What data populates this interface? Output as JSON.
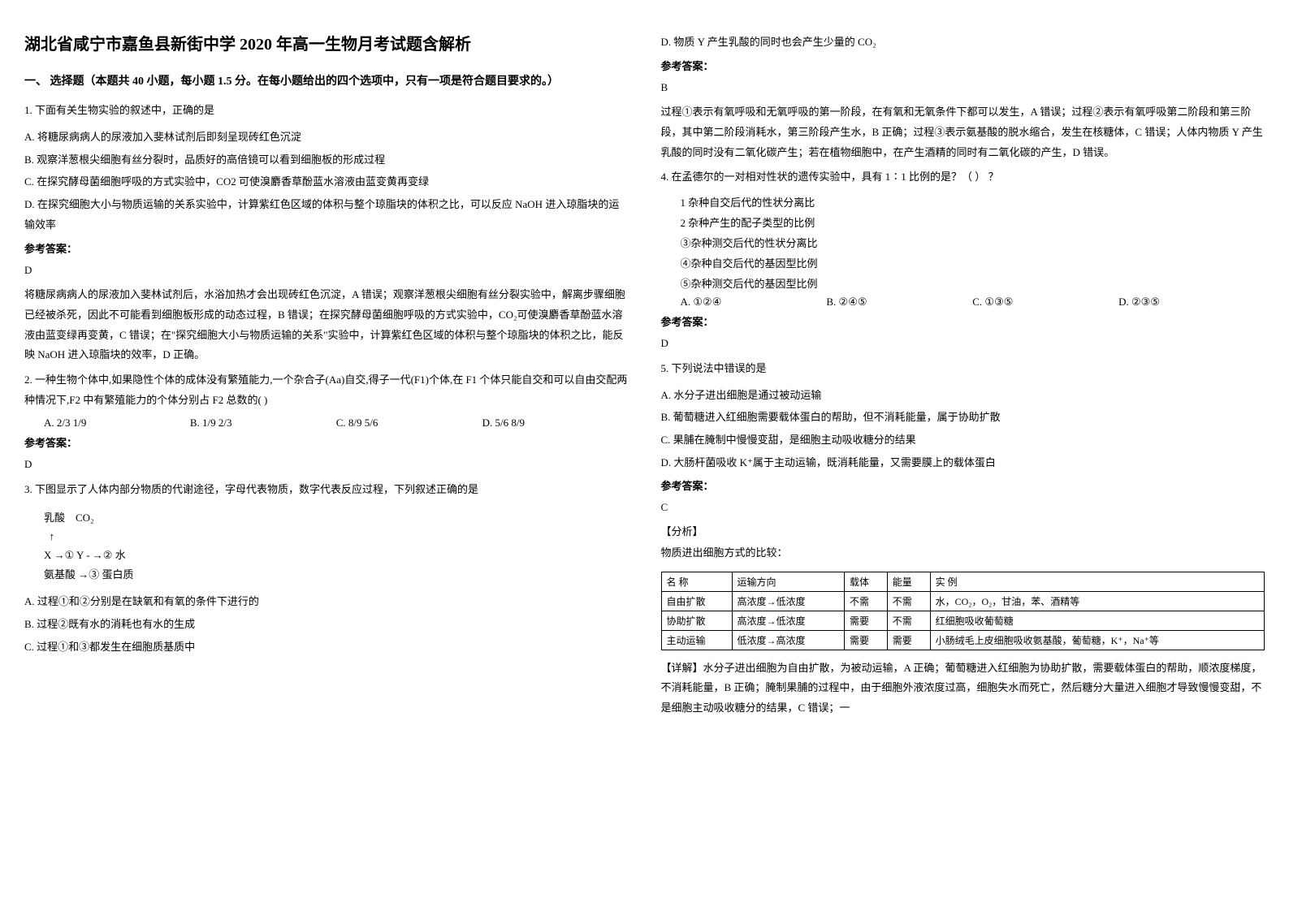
{
  "title": "湖北省咸宁市嘉鱼县新街中学 2020 年高一生物月考试题含解析",
  "section_header": "一、 选择题（本题共 40 小题，每小题 1.5 分。在每小题给出的四个选项中，只有一项是符合题目要求的。）",
  "q1": {
    "stem": "1. 下面有关生物实验的叙述中，正确的是",
    "opts": {
      "a": "A.  将糖尿病病人的尿液加入斐林试剂后即刻呈现砖红色沉淀",
      "b": "B.  观察洋葱根尖细胞有丝分裂时，品质好的高倍镜可以看到细胞板的形成过程",
      "c": "C.  在探究酵母菌细胞呼吸的方式实验中，CO2 可使溴麝香草酚蓝水溶液由蓝变黄再变绿",
      "d": "D.  在探究细胞大小与物质运输的关系实验中，计算紫红色区域的体积与整个琼脂块的体积之比，可以反应 NaOH 进入琼脂块的运输效率"
    },
    "answer_label": "参考答案：",
    "answer": "D",
    "explanation": "将糖尿病病人的尿液加入斐林试剂后，水浴加热才会出现砖红色沉淀，A 错误；观察洋葱根尖细胞有丝分裂实验中，解离步骤细胞已经被杀死，因此不可能看到细胞板形成的动态过程，B 错误；在探究酵母菌细胞呼吸的方式实验中，CO₂可使溴麝香草酚蓝水溶液由蓝变绿再变黄，C 错误；在\"探究细胞大小与物质运输的关系\"实验中，计算紫红色区域的体积与整个琼脂块的体积之比，能反映 NaOH 进入琼脂块的效率，D 正确。"
  },
  "q2": {
    "stem": "2. 一种生物个体中,如果隐性个体的成体没有繁殖能力,一个杂合子(Aa)自交,得子一代(F1)个体,在 F1 个体只能自交和可以自由交配两种情况下,F2 中有繁殖能力的个体分别占 F2 总数的(        )",
    "opts": {
      "a": "A. 2/3        1/9",
      "b": "B. 1/9        2/3",
      "c": "C. 8/9        5/6",
      "d": "D. 5/6        8/9"
    },
    "answer_label": "参考答案：",
    "answer": "D"
  },
  "q3": {
    "stem": "3. 下图显示了人体内部分物质的代谢途径，字母代表物质，数字代表反应过程，下列叙述正确的是",
    "diagram": {
      "line1": "乳酸    CO₂",
      "line2": "  ↑",
      "line3": "X →① Y - →② 水",
      "line4": "",
      "line5": "氨基酸 →③ 蛋白质"
    },
    "opts": {
      "a": "A.  过程①和②分别是在缺氧和有氧的条件下进行的",
      "b": "B.  过程②既有水的消耗也有水的生成",
      "c": "C.  过程①和③都发生在细胞质基质中",
      "d": "D.  物质 Y 产生乳酸的同时也会产生少量的 CO₂"
    },
    "answer_label": "参考答案：",
    "answer": "B",
    "explanation": "过程①表示有氧呼吸和无氧呼吸的第一阶段，在有氧和无氧条件下都可以发生，A 错误；过程②表示有氧呼吸第二阶段和第三阶段，其中第二阶段消耗水，第三阶段产生水，B 正确；过程③表示氨基酸的脱水缩合，发生在核糖体，C 错误；人体内物质 Y 产生乳酸的同时没有二氧化碳产生；若在植物细胞中，在产生酒精的同时有二氧化碳的产生，D 错误。"
  },
  "q4": {
    "stem": "4. 在孟德尔的一对相对性状的遗传实验中，具有 1∶1 比例的是？（            ）     ？",
    "sub": {
      "s1": "1    杂种自交后代的性状分离比",
      "s2": "2    杂种产生的配子类型的比例",
      "s3": "③杂种测交后代的性状分离比",
      "s4": "④杂种自交后代的基因型比例",
      "s5": "⑤杂种测交后代的基因型比例"
    },
    "opts": {
      "a": "A. ①②④",
      "b": "B. ②④⑤",
      "c": "C. ①③⑤",
      "d": "D. ②③⑤"
    },
    "answer_label": "参考答案：",
    "answer": "D"
  },
  "q5": {
    "stem": "5. 下列说法中错误的是",
    "opts": {
      "a": "A. 水分子进出细胞是通过被动运输",
      "b": "B. 葡萄糖进入红细胞需要载体蛋白的帮助，但不消耗能量，属于协助扩散",
      "c": "C. 果脯在腌制中慢慢变甜，是细胞主动吸收糖分的结果",
      "d": "D. 大肠杆菌吸收 K⁺属于主动运输，既消耗能量，又需要膜上的载体蛋白"
    },
    "answer_label": "参考答案：",
    "answer": "C",
    "analysis_label": "【分析】",
    "analysis": "物质进出细胞方式的比较：",
    "table": {
      "headers": [
        "名  称",
        "运输方向",
        "载体",
        "能量",
        "实      例"
      ],
      "rows": [
        [
          "自由扩散",
          "高浓度→低浓度",
          "不需",
          "不需",
          "水，CO₂，O₂，甘油，苯、酒精等"
        ],
        [
          "协助扩散",
          "高浓度→低浓度",
          "需要",
          "不需",
          "红细胞吸收葡萄糖"
        ],
        [
          "主动运输",
          "低浓度→高浓度",
          "需要",
          "需要",
          "小肠绒毛上皮细胞吸收氨基酸，葡萄糖，K⁺，Na⁺等"
        ]
      ]
    },
    "detail_label": "【详解】",
    "detail": "水分子进出细胞为自由扩散，为被动运输，A 正确；葡萄糖进入红细胞为协助扩散，需要载体蛋白的帮助，顺浓度梯度，不消耗能量，B 正确；腌制果脯的过程中，由于细胞外液浓度过高，细胞失水而死亡，然后糖分大量进入细胞才导致慢慢变甜，不是细胞主动吸收糖分的结果，C 错误；一"
  }
}
